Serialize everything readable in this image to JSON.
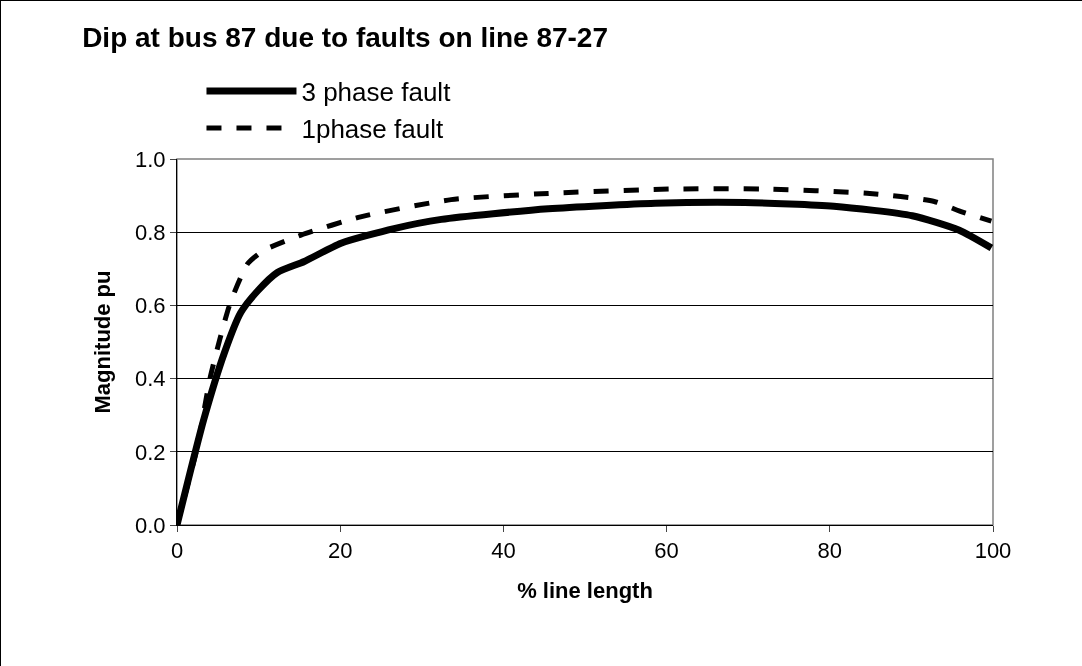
{
  "chart_data": {
    "type": "line",
    "title": "Dip at bus 87 due to faults on line 87-27",
    "xlabel": "% line length",
    "ylabel": "Magnitude pu",
    "xlim": [
      0,
      100
    ],
    "xticks": [
      0,
      20,
      40,
      60,
      80,
      100
    ],
    "ylim": [
      0,
      1
    ],
    "yticks": [
      {
        "value": 0,
        "label": "0.0"
      },
      {
        "value": 0.2,
        "label": "0.2"
      },
      {
        "value": 0.4,
        "label": "0.4"
      },
      {
        "value": 0.6,
        "label": "0.6"
      },
      {
        "value": 0.8,
        "label": "0.8"
      },
      {
        "value": 1,
        "label": "1.0"
      }
    ],
    "grid": "y",
    "legend": "top",
    "marker": "none",
    "series": [
      {
        "name": "3 phase fault",
        "color": "#000000",
        "line_style": "solid",
        "x": [
          0,
          3.3,
          5.8,
          7.8,
          9.9,
          12.3,
          15.6,
          20.1,
          26.6,
          32.4,
          45.5,
          58.6,
          69.6,
          80.5,
          90.1,
          95.8,
          99.8
        ],
        "values": [
          0,
          0.29,
          0.47,
          0.58,
          0.64,
          0.69,
          0.72,
          0.77,
          0.81,
          0.835,
          0.864,
          0.879,
          0.881,
          0.871,
          0.845,
          0.806,
          0.757
        ]
      },
      {
        "name": "1phase fault",
        "color": "#000000",
        "line_style": "dashed",
        "x": [
          0,
          2.5,
          4.1,
          6.5,
          8.7,
          10.7,
          15.2,
          22.5,
          33.6,
          45.5,
          60.8,
          71.7,
          84.9,
          92.8,
          96,
          99.8
        ],
        "values": [
          0,
          0.215,
          0.406,
          0.605,
          0.715,
          0.751,
          0.792,
          0.842,
          0.889,
          0.906,
          0.918,
          0.918,
          0.906,
          0.884,
          0.857,
          0.83
        ]
      }
    ]
  }
}
